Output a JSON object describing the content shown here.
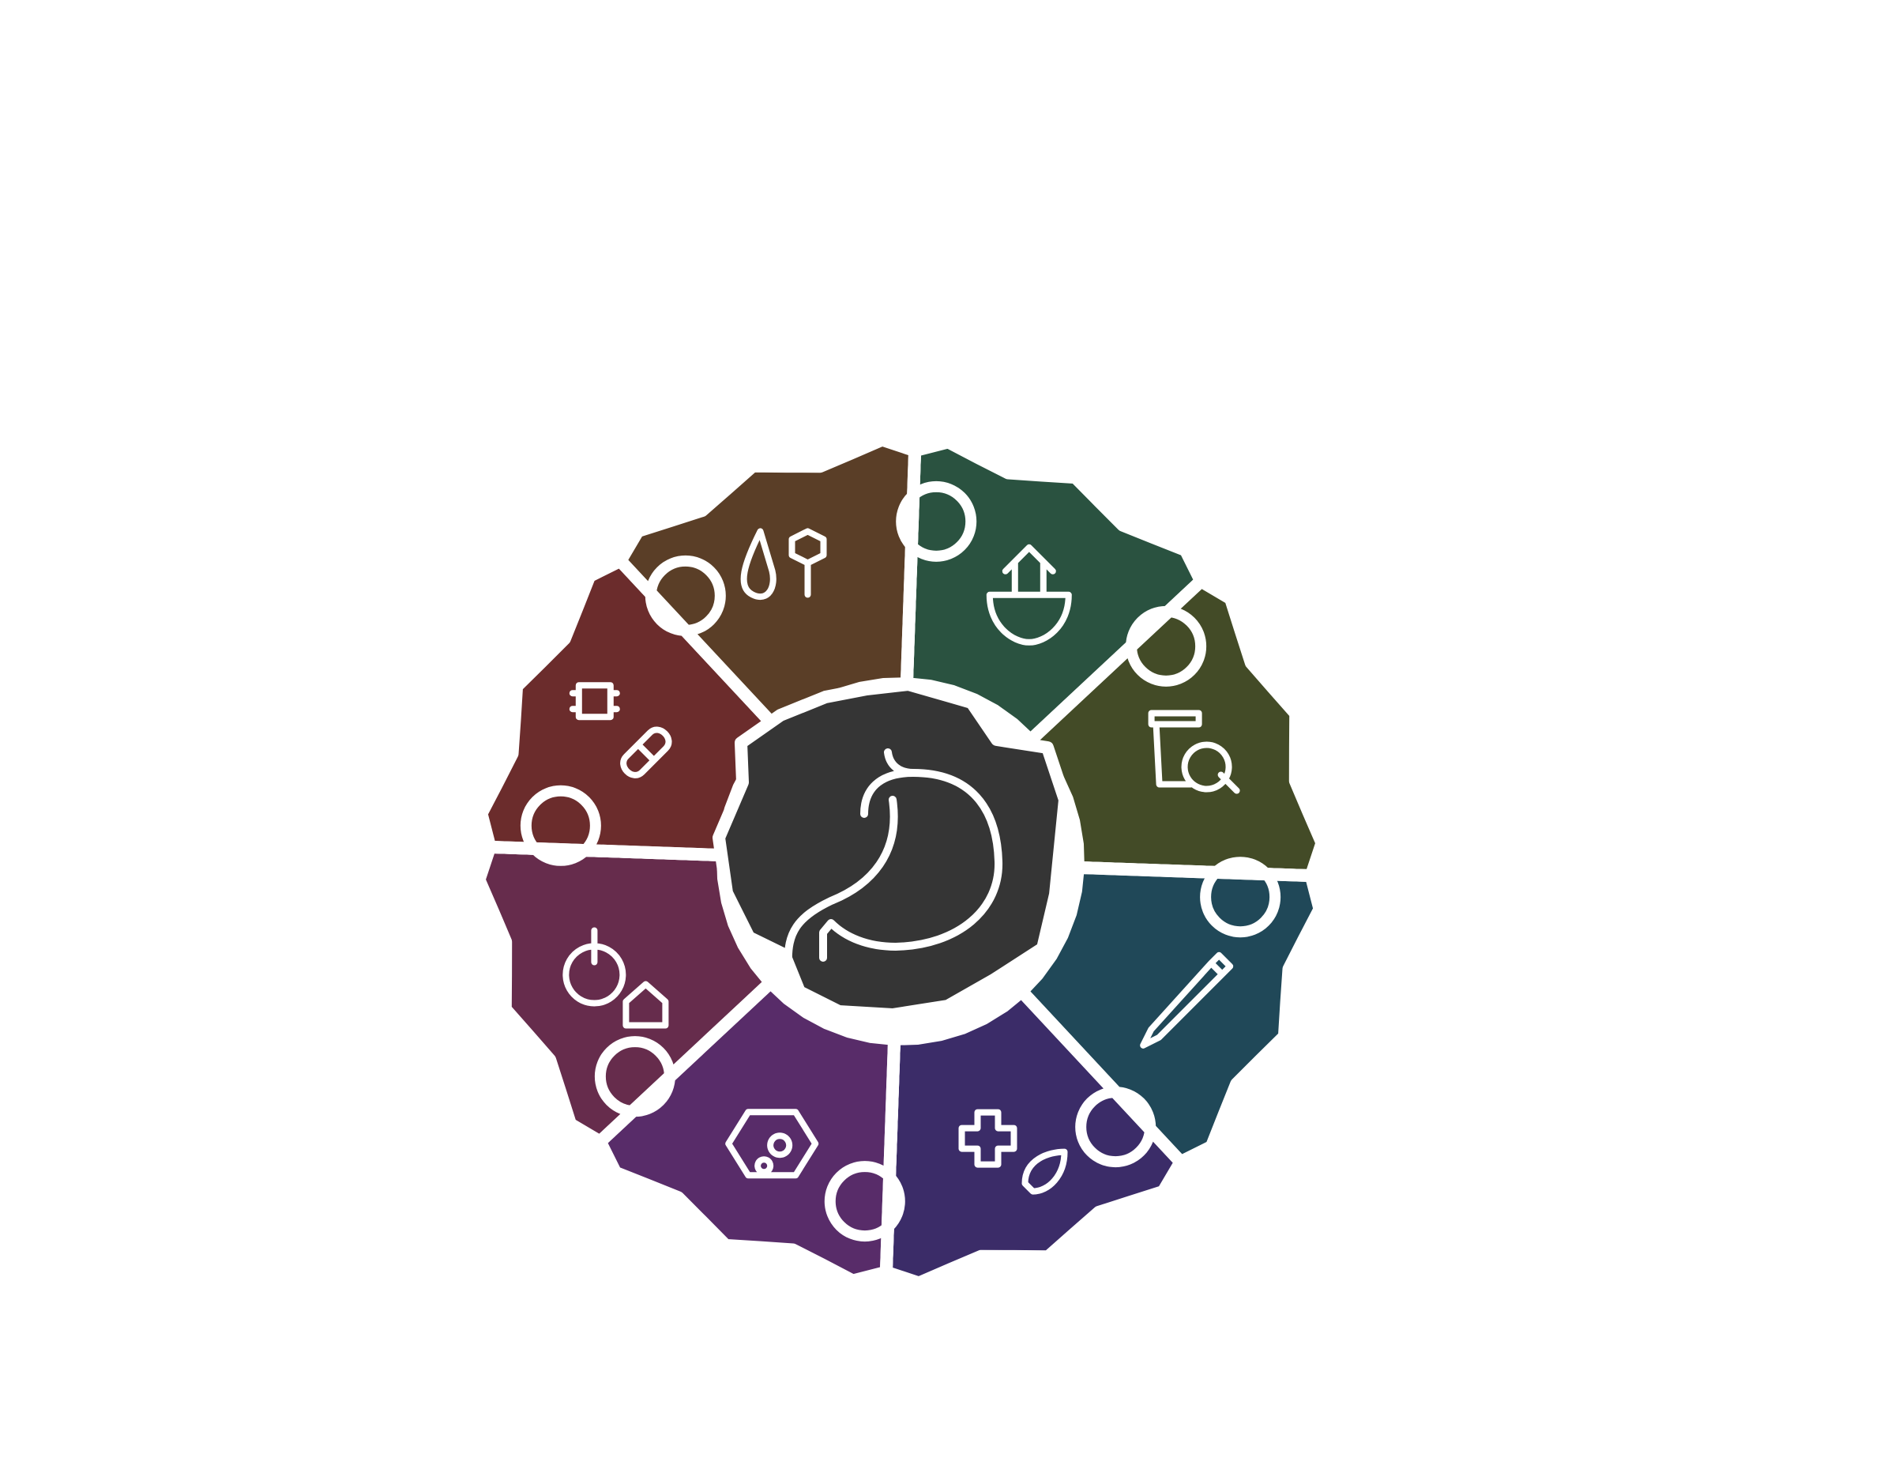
{
  "diagram": {
    "type": "puzzle-ring",
    "hub_color": "#353535",
    "outline_color": "#ffffff",
    "segments": [
      {
        "icon": "plant-house-icon",
        "color": "#2a5240"
      },
      {
        "icon": "recycle-bin-search-icon",
        "color": "#434b27"
      },
      {
        "icon": "pencil-icon",
        "color": "#204858"
      },
      {
        "icon": "medical-leaf-icon",
        "color": "#3b2c68"
      },
      {
        "icon": "virus-icon",
        "color": "#582c69"
      },
      {
        "icon": "money-house-icon",
        "color": "#662c4c"
      },
      {
        "icon": "chip-pill-icon",
        "color": "#6b2c2c"
      },
      {
        "icon": "water-hand-icon",
        "color": "#5a3e27"
      }
    ]
  }
}
